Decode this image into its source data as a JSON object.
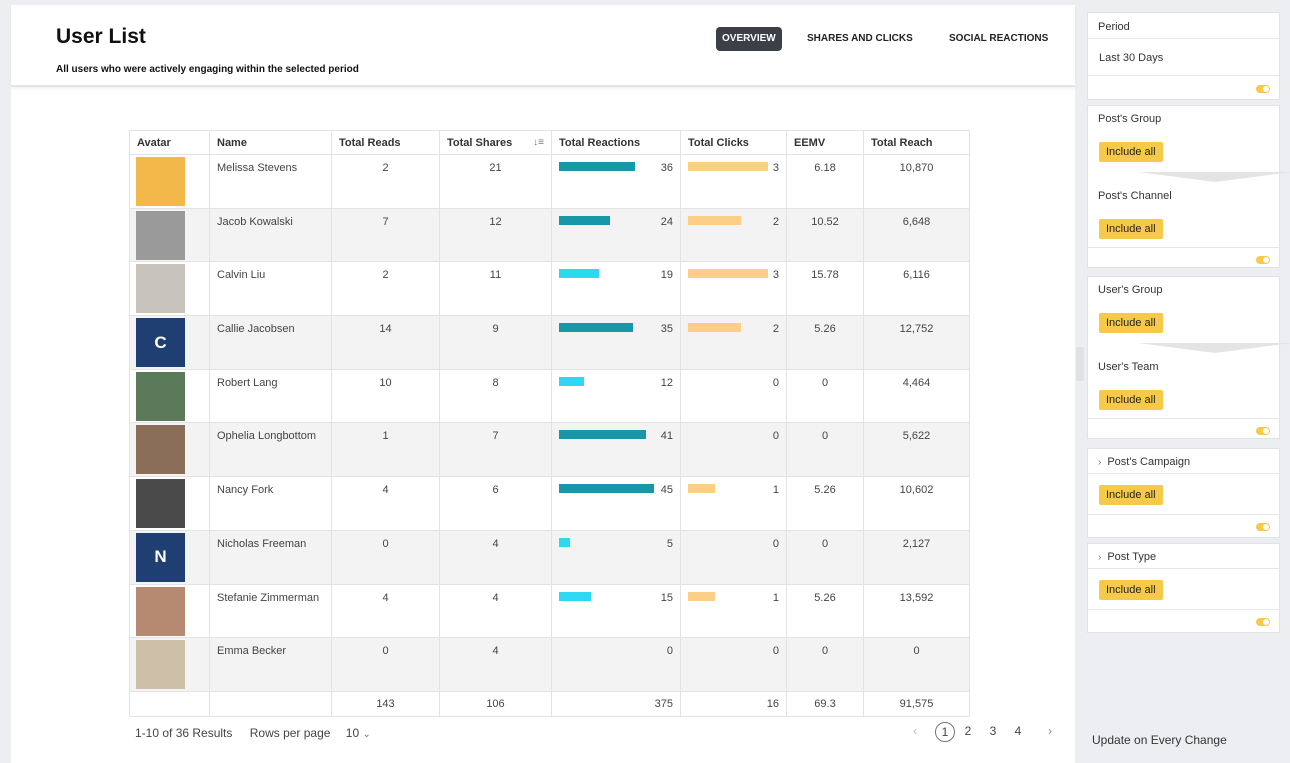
{
  "header": {
    "title": "User List",
    "subtitle": "All users who were actively engaging within the selected period",
    "tabs": [
      {
        "label": "OVERVIEW",
        "active": true
      },
      {
        "label": "SHARES AND CLICKS",
        "active": false
      },
      {
        "label": "SOCIAL REACTIONS",
        "active": false
      }
    ]
  },
  "table": {
    "columns": [
      "Avatar",
      "Name",
      "Total Reads",
      "Total Shares",
      "Total Reactions",
      "Total Clicks",
      "EEMV",
      "Total Reach"
    ],
    "reactions_max": 45,
    "clicks_max": 3,
    "rows": [
      {
        "initial": "",
        "avatar_color": "#f2b84a",
        "name": "Melissa Stevens",
        "reads": "2",
        "shares": "21",
        "reactions": 36,
        "clicks": 3,
        "eemv": "6.18",
        "reach": "10,870"
      },
      {
        "initial": "",
        "avatar_color": "#9a9a9a",
        "name": "Jacob Kowalski",
        "reads": "7",
        "shares": "12",
        "reactions": 24,
        "clicks": 2,
        "eemv": "10.52",
        "reach": "6,648"
      },
      {
        "initial": "",
        "avatar_color": "#c8c2bc",
        "name": "Calvin Liu",
        "reads": "2",
        "shares": "11",
        "reactions": 19,
        "clicks": 3,
        "eemv": "15.78",
        "reach": "6,116"
      },
      {
        "initial": "C",
        "avatar_color": "#1f3f73",
        "name": "Callie Jacobsen",
        "reads": "14",
        "shares": "9",
        "reactions": 35,
        "clicks": 2,
        "eemv": "5.26",
        "reach": "12,752"
      },
      {
        "initial": "",
        "avatar_color": "#5a7a5a",
        "name": "Robert Lang",
        "reads": "10",
        "shares": "8",
        "reactions": 12,
        "clicks": 0,
        "eemv": "0",
        "reach": "4,464"
      },
      {
        "initial": "",
        "avatar_color": "#8a6e5a",
        "name": "Ophelia Longbottom",
        "reads": "1",
        "shares": "7",
        "reactions": 41,
        "clicks": 0,
        "eemv": "0",
        "reach": "5,622"
      },
      {
        "initial": "",
        "avatar_color": "#4a4a4a",
        "name": "Nancy Fork",
        "reads": "4",
        "shares": "6",
        "reactions": 45,
        "clicks": 1,
        "eemv": "5.26",
        "reach": "10,602"
      },
      {
        "initial": "N",
        "avatar_color": "#1f3f73",
        "name": "Nicholas Freeman",
        "reads": "0",
        "shares": "4",
        "reactions": 5,
        "clicks": 0,
        "eemv": "0",
        "reach": "2,127"
      },
      {
        "initial": "",
        "avatar_color": "#b58a70",
        "name": "Stefanie Zimmerman",
        "reads": "4",
        "shares": "4",
        "reactions": 15,
        "clicks": 1,
        "eemv": "5.26",
        "reach": "13,592"
      },
      {
        "initial": "",
        "avatar_color": "#cdbfa8",
        "name": "Emma Becker",
        "reads": "0",
        "shares": "4",
        "reactions": 0,
        "clicks": 0,
        "eemv": "0",
        "reach": "0"
      }
    ],
    "totals": {
      "reads": "143",
      "shares": "106",
      "reactions": "375",
      "clicks": "16",
      "eemv": "69.3",
      "reach": "91,575"
    }
  },
  "footer": {
    "results": "1-10 of 36 Results",
    "rows_per_page_label": "Rows per page",
    "rows_per_page_value": "10",
    "pages": [
      "1",
      "2",
      "3",
      "4"
    ],
    "current_page": "1"
  },
  "sidebar": {
    "period_title": "Period",
    "period_value": "Last 30 Days",
    "posts_group_title": "Post's Group",
    "posts_channel_title": "Post's Channel",
    "users_group_title": "User's Group",
    "users_team_title": "User's Team",
    "posts_campaign_title": "Post's Campaign",
    "post_type_title": "Post Type",
    "include_all": "Include all",
    "update_label": "Update on Every Change"
  },
  "colors": {
    "reaction_dark": "#1797a8",
    "reaction_light": "#2fd8f2",
    "clicks": "#fbcf88",
    "accent": "#f7c948"
  }
}
